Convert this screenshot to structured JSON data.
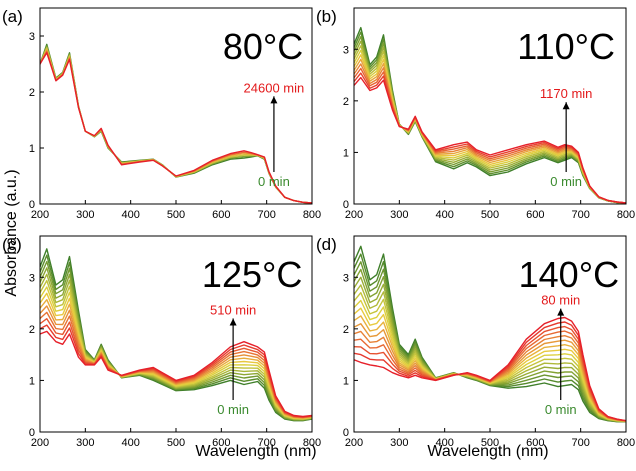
{
  "figure": {
    "ylabel": "Absorbance (a.u.)",
    "xlabel": "Wavelength (nm)"
  },
  "chart_data": [
    {
      "type": "line",
      "panel_label": "(a)",
      "temperature_label": "80°C",
      "start_label": "0 min",
      "end_label": "24600 min",
      "xlim": [
        200,
        800
      ],
      "ylim": [
        0,
        3.5
      ],
      "x_ticks": [
        200,
        300,
        400,
        500,
        600,
        700,
        800
      ],
      "y_ticks": [
        0,
        1,
        2,
        3
      ],
      "series_count": 6,
      "x": [
        200,
        215,
        235,
        250,
        265,
        285,
        300,
        320,
        335,
        350,
        380,
        420,
        450,
        470,
        500,
        540,
        580,
        620,
        650,
        665,
        680,
        695,
        705,
        720,
        740,
        760,
        780,
        800
      ],
      "start_values": [
        2.5,
        2.85,
        2.25,
        2.35,
        2.7,
        1.75,
        1.3,
        1.2,
        1.3,
        1.0,
        0.75,
        0.78,
        0.8,
        0.7,
        0.48,
        0.55,
        0.7,
        0.8,
        0.82,
        0.84,
        0.86,
        0.8,
        0.55,
        0.3,
        0.12,
        0.06,
        0.03,
        0.02
      ],
      "end_values": [
        2.5,
        2.7,
        2.2,
        2.3,
        2.58,
        1.72,
        1.3,
        1.22,
        1.35,
        1.05,
        0.7,
        0.75,
        0.78,
        0.68,
        0.5,
        0.6,
        0.78,
        0.9,
        0.95,
        0.92,
        0.88,
        0.84,
        0.58,
        0.32,
        0.12,
        0.06,
        0.03,
        0.02
      ]
    },
    {
      "type": "line",
      "panel_label": "(b)",
      "temperature_label": "110°C",
      "start_label": "0 min",
      "end_label": "1170 min",
      "xlim": [
        200,
        800
      ],
      "ylim": [
        0,
        3.8
      ],
      "x_ticks": [
        200,
        300,
        400,
        500,
        600,
        700,
        800
      ],
      "y_ticks": [
        0,
        1,
        2,
        3
      ],
      "series_count": 12,
      "x": [
        200,
        215,
        235,
        250,
        265,
        285,
        300,
        320,
        335,
        350,
        380,
        420,
        450,
        470,
        500,
        540,
        580,
        620,
        650,
        665,
        680,
        695,
        705,
        720,
        740,
        760,
        780,
        800
      ],
      "start_values": [
        3.1,
        3.42,
        2.7,
        2.85,
        3.28,
        2.2,
        1.55,
        1.35,
        1.6,
        1.3,
        0.82,
        0.68,
        0.8,
        0.72,
        0.55,
        0.62,
        0.78,
        0.9,
        0.8,
        0.85,
        0.9,
        0.8,
        0.55,
        0.3,
        0.12,
        0.06,
        0.03,
        0.02
      ],
      "end_values": [
        2.3,
        2.45,
        2.2,
        2.25,
        2.4,
        1.82,
        1.5,
        1.45,
        1.7,
        1.4,
        1.05,
        1.15,
        1.2,
        1.05,
        0.95,
        1.05,
        1.15,
        1.22,
        1.1,
        1.15,
        1.12,
        1.0,
        0.7,
        0.35,
        0.14,
        0.07,
        0.04,
        0.02
      ]
    },
    {
      "type": "line",
      "panel_label": "(c)",
      "temperature_label": "125°C",
      "start_label": "0 min",
      "end_label": "510 min",
      "xlim": [
        200,
        800
      ],
      "ylim": [
        0,
        3.8
      ],
      "x_ticks": [
        200,
        300,
        400,
        500,
        600,
        700,
        800
      ],
      "y_ticks": [
        0,
        1,
        2,
        3
      ],
      "series_count": 14,
      "x": [
        200,
        215,
        235,
        250,
        265,
        285,
        300,
        320,
        335,
        350,
        380,
        420,
        450,
        470,
        500,
        540,
        580,
        620,
        650,
        665,
        680,
        695,
        705,
        720,
        740,
        760,
        780,
        800
      ],
      "start_values": [
        3.2,
        3.55,
        2.85,
        2.95,
        3.4,
        2.35,
        1.6,
        1.4,
        1.7,
        1.4,
        1.05,
        1.1,
        1.0,
        0.92,
        0.8,
        0.82,
        0.9,
        1.0,
        0.92,
        0.95,
        0.98,
        0.85,
        0.62,
        0.38,
        0.25,
        0.22,
        0.22,
        0.25
      ],
      "end_values": [
        1.9,
        1.95,
        1.75,
        1.7,
        1.9,
        1.45,
        1.3,
        1.3,
        1.45,
        1.2,
        1.1,
        1.2,
        1.25,
        1.15,
        1.0,
        1.1,
        1.35,
        1.65,
        1.75,
        1.7,
        1.65,
        1.55,
        1.2,
        0.7,
        0.4,
        0.32,
        0.3,
        0.32
      ]
    },
    {
      "type": "line",
      "panel_label": "(d)",
      "temperature_label": "140°C",
      "start_label": "0 min",
      "end_label": "80 min",
      "xlim": [
        200,
        800
      ],
      "ylim": [
        0,
        3.8
      ],
      "x_ticks": [
        200,
        300,
        400,
        500,
        600,
        700,
        800
      ],
      "y_ticks": [
        0,
        1,
        2,
        3
      ],
      "series_count": 16,
      "x": [
        200,
        215,
        235,
        250,
        265,
        285,
        300,
        320,
        335,
        350,
        380,
        420,
        450,
        470,
        500,
        540,
        580,
        620,
        650,
        665,
        680,
        695,
        705,
        720,
        740,
        760,
        780,
        800
      ],
      "start_values": [
        3.3,
        3.6,
        2.95,
        3.05,
        3.45,
        2.4,
        1.7,
        1.5,
        1.8,
        1.45,
        1.05,
        1.15,
        1.05,
        1.0,
        0.9,
        0.85,
        0.88,
        0.95,
        0.88,
        0.9,
        0.92,
        0.82,
        0.6,
        0.38,
        0.26,
        0.22,
        0.2,
        0.2
      ],
      "end_values": [
        1.4,
        1.35,
        1.3,
        1.28,
        1.25,
        1.15,
        1.1,
        1.05,
        1.1,
        1.05,
        1.0,
        1.1,
        1.15,
        1.1,
        1.0,
        1.3,
        1.8,
        2.1,
        2.2,
        2.22,
        2.15,
        1.95,
        1.5,
        0.9,
        0.45,
        0.3,
        0.25,
        0.22
      ]
    }
  ],
  "colors": {
    "start": "#3f7f2a",
    "mid": "#e8d640",
    "end": "#e6202a",
    "axis": "#000000",
    "start_label_color": "#3a8a2e",
    "end_label_color": "#e31a1c"
  }
}
